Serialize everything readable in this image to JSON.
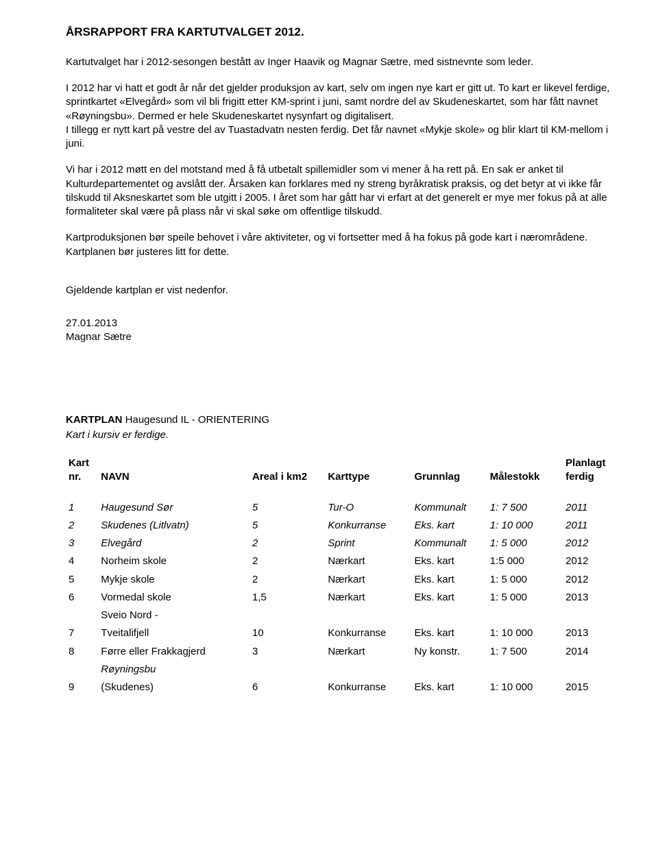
{
  "title": "ÅRSRAPPORT FRA KARTUTVALGET 2012.",
  "p1": "Kartutvalget har i 2012-sesongen bestått av Inger Haavik og Magnar Sætre, med sistnevnte som leder.",
  "p2": "I 2012 har vi hatt et godt år når det gjelder produksjon av kart, selv om ingen nye kart er gitt ut. To kart er likevel ferdige, sprintkartet «Elvegård» som vil bli frigitt etter KM-sprint i juni, samt nordre del av Skudeneskartet, som har fått navnet «Røyningsbu». Dermed er hele Skudeneskartet nysynfart og digitalisert.",
  "p3": "I tillegg er nytt kart på vestre del av Tuastadvatn nesten ferdig. Det får navnet «Mykje skole» og blir klart til KM-mellom i juni.",
  "p4": "Vi har i 2012 møtt en del motstand med å få utbetalt spillemidler som vi mener å ha rett på. En sak er anket til Kulturdepartementet og avslått der. Årsaken kan forklares med ny streng byråkratisk praksis, og det betyr at vi ikke får tilskudd til Aksneskartet som ble utgitt i 2005. I året som har gått har vi erfart at det generelt er mye mer fokus på at alle formaliteter skal være på plass når vi skal søke om offentlige tilskudd.",
  "p5": "Kartproduksjonen bør speile behovet i våre aktiviteter, og vi fortsetter med å ha fokus på gode kart i nærområdene. Kartplanen bør justeres litt for dette.",
  "p6": "Gjeldende kartplan er vist nedenfor.",
  "sign_date": "27.01.2013",
  "sign_name": "Magnar Sætre",
  "kartplan_label": "KARTPLAN",
  "kartplan_rest": " Haugesund IL - ORIENTERING",
  "kartplan_note": "Kart i kursiv er ferdige.",
  "headers": {
    "nr1": "Kart",
    "nr2": "nr.",
    "navn": "NAVN",
    "areal": "Areal i km2",
    "type": "Karttype",
    "grunn": "Grunnlag",
    "mal": "Målestokk",
    "ferd1": "Planlagt",
    "ferd2": "ferdig"
  },
  "rows": [
    {
      "nr": "1",
      "navn": "Haugesund Sør",
      "areal": "5",
      "type": "Tur-O",
      "grunn": "Kommunalt",
      "mal": "1: 7 500",
      "ferdig": "2011",
      "italic": true
    },
    {
      "nr": "2",
      "navn": "Skudenes (Litlvatn)",
      "areal": "5",
      "type": "Konkurranse",
      "grunn": "Eks. kart",
      "mal": "1: 10 000",
      "ferdig": "2011",
      "italic": true
    },
    {
      "nr": "3",
      "navn": "Elvegård",
      "areal": "2",
      "type": "Sprint",
      "grunn": "Kommunalt",
      "mal": "1: 5 000",
      "ferdig": "2012",
      "italic": true
    },
    {
      "nr": "4",
      "navn": "Norheim skole",
      "areal": "2",
      "type": "Nærkart",
      "grunn": "Eks. kart",
      "mal": "1:5 000",
      "ferdig": "2012",
      "italic": false
    },
    {
      "nr": "5",
      "navn": "Mykje skole",
      "areal": "2",
      "type": "Nærkart",
      "grunn": "Eks. kart",
      "mal": "1: 5 000",
      "ferdig": "2012",
      "italic": false
    },
    {
      "nr": "6",
      "navn": "Vormedal skole",
      "areal": "1,5",
      "type": "Nærkart",
      "grunn": "Eks. kart",
      "mal": "1: 5 000",
      "ferdig": "2013",
      "italic": false
    },
    {
      "nr": "7",
      "navn": "Sveio Nord - Tveitalifjell",
      "areal": "10",
      "type": "Konkurranse",
      "grunn": "Eks. kart",
      "mal": "1: 10 000",
      "ferdig": "2013",
      "italic": false,
      "split": true,
      "navn_line1": "Sveio Nord -",
      "navn_line2": "Tveitalifjell"
    },
    {
      "nr": "8",
      "navn": "Førre eller Frakkagjerd",
      "areal": "3",
      "type": "Nærkart",
      "grunn": "Ny konstr.",
      "mal": "1: 7 500",
      "ferdig": "2014",
      "italic": false
    },
    {
      "nr": "9",
      "navn": "Røyningsbu (Skudenes)",
      "areal": "6",
      "type": "Konkurranse",
      "grunn": "Eks. kart",
      "mal": "1: 10 000",
      "ferdig": "2015",
      "italic": false,
      "split": true,
      "navn_line1": "Røyningsbu",
      "navn_line2": "(Skudenes)",
      "navn_line1_italic": true
    }
  ]
}
